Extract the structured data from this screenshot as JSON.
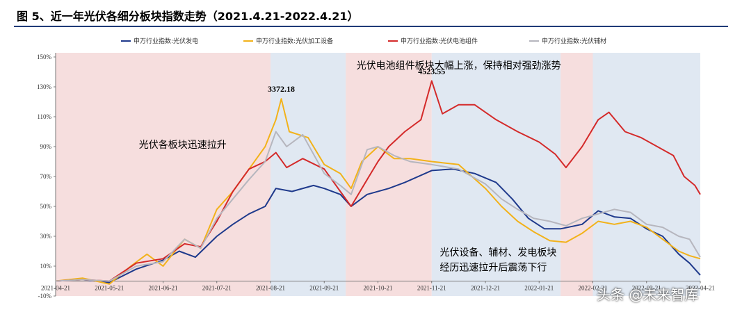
{
  "title": "图 5、近一年光伏各细分板块指数走势（2021.4.21-2022.4.21）",
  "watermark": "头条 @未来智库",
  "chart_data": {
    "type": "line",
    "x_labels": [
      "2021-04-21",
      "2021-05-21",
      "2021-06-21",
      "2021-07-21",
      "2021-08-21",
      "2021-09-21",
      "2021-10-21",
      "2021-11-21",
      "2021-12-21",
      "2022-01-21",
      "2022-02-21",
      "2022-03-21",
      "2022-04-21"
    ],
    "y_ticks": [
      "150%",
      "130%",
      "110%",
      "90%",
      "70%",
      "50%",
      "30%",
      "10%",
      "-10%"
    ],
    "ylim": [
      -10,
      150
    ],
    "grid": false,
    "legend_position": "top",
    "shaded_periods": [
      {
        "start": 0,
        "end": 4.0,
        "color": "#f6dede"
      },
      {
        "start": 4.0,
        "end": 5.4,
        "color": "#e0e8f2"
      },
      {
        "start": 5.4,
        "end": 7.0,
        "color": "#f6dede"
      },
      {
        "start": 7.0,
        "end": 9.4,
        "color": "#e0e8f2"
      },
      {
        "start": 9.4,
        "end": 10.0,
        "color": "#f6dede"
      },
      {
        "start": 10.0,
        "end": 12.0,
        "color": "#e0e8f2"
      }
    ],
    "series": [
      {
        "name": "申万行业指数:光伏发电",
        "color": "#1f3a8c",
        "points": [
          [
            0,
            0
          ],
          [
            0.5,
            1
          ],
          [
            1,
            -1
          ],
          [
            1.5,
            8
          ],
          [
            2,
            14
          ],
          [
            2.3,
            20
          ],
          [
            2.6,
            16
          ],
          [
            3,
            30
          ],
          [
            3.3,
            38
          ],
          [
            3.6,
            45
          ],
          [
            3.9,
            50
          ],
          [
            4.1,
            62
          ],
          [
            4.4,
            60
          ],
          [
            4.8,
            64
          ],
          [
            5.0,
            62
          ],
          [
            5.3,
            58
          ],
          [
            5.5,
            50
          ],
          [
            5.8,
            58
          ],
          [
            6.2,
            62
          ],
          [
            6.5,
            66
          ],
          [
            7.0,
            74
          ],
          [
            7.4,
            75
          ],
          [
            7.8,
            72
          ],
          [
            8.2,
            66
          ],
          [
            8.5,
            55
          ],
          [
            8.8,
            42
          ],
          [
            9.1,
            35
          ],
          [
            9.4,
            35
          ],
          [
            9.8,
            38
          ],
          [
            10.1,
            47
          ],
          [
            10.4,
            43
          ],
          [
            10.7,
            42
          ],
          [
            11.0,
            35
          ],
          [
            11.3,
            30
          ],
          [
            11.6,
            18
          ],
          [
            11.8,
            12
          ],
          [
            12.0,
            4
          ]
        ]
      },
      {
        "name": "申万行业指数:光伏加工设备",
        "color": "#f2b21a",
        "points": [
          [
            0,
            0
          ],
          [
            0.5,
            2
          ],
          [
            1,
            -2
          ],
          [
            1.4,
            10
          ],
          [
            1.7,
            18
          ],
          [
            2,
            10
          ],
          [
            2.4,
            28
          ],
          [
            2.7,
            22
          ],
          [
            3.0,
            48
          ],
          [
            3.3,
            60
          ],
          [
            3.6,
            75
          ],
          [
            3.9,
            90
          ],
          [
            4.1,
            108
          ],
          [
            4.2,
            122
          ],
          [
            4.35,
            100
          ],
          [
            4.7,
            96
          ],
          [
            5.0,
            78
          ],
          [
            5.3,
            72
          ],
          [
            5.5,
            62
          ],
          [
            5.7,
            80
          ],
          [
            6.0,
            90
          ],
          [
            6.3,
            82
          ],
          [
            6.6,
            82
          ],
          [
            7.0,
            80
          ],
          [
            7.5,
            78
          ],
          [
            8.0,
            62
          ],
          [
            8.3,
            50
          ],
          [
            8.6,
            40
          ],
          [
            8.9,
            33
          ],
          [
            9.2,
            27
          ],
          [
            9.5,
            26
          ],
          [
            9.8,
            32
          ],
          [
            10.1,
            40
          ],
          [
            10.4,
            38
          ],
          [
            10.7,
            40
          ],
          [
            11.0,
            36
          ],
          [
            11.3,
            28
          ],
          [
            11.6,
            20
          ],
          [
            11.8,
            17
          ],
          [
            12.0,
            15
          ]
        ]
      },
      {
        "name": "申万行业指数:光伏电池组件",
        "color": "#d42a2a",
        "points": [
          [
            0,
            0
          ],
          [
            0.5,
            1
          ],
          [
            1,
            0
          ],
          [
            1.5,
            12
          ],
          [
            2.0,
            15
          ],
          [
            2.4,
            25
          ],
          [
            2.7,
            23
          ],
          [
            3.0,
            40
          ],
          [
            3.3,
            60
          ],
          [
            3.6,
            75
          ],
          [
            3.9,
            80
          ],
          [
            4.1,
            86
          ],
          [
            4.3,
            76
          ],
          [
            4.6,
            82
          ],
          [
            5.0,
            75
          ],
          [
            5.3,
            60
          ],
          [
            5.5,
            50
          ],
          [
            5.8,
            68
          ],
          [
            6.0,
            80
          ],
          [
            6.2,
            90
          ],
          [
            6.5,
            100
          ],
          [
            6.8,
            108
          ],
          [
            7.0,
            134
          ],
          [
            7.2,
            112
          ],
          [
            7.5,
            118
          ],
          [
            7.8,
            118
          ],
          [
            8.2,
            108
          ],
          [
            8.6,
            100
          ],
          [
            9.0,
            93
          ],
          [
            9.3,
            85
          ],
          [
            9.5,
            76
          ],
          [
            9.8,
            90
          ],
          [
            10.1,
            108
          ],
          [
            10.3,
            113
          ],
          [
            10.6,
            100
          ],
          [
            10.9,
            96
          ],
          [
            11.2,
            90
          ],
          [
            11.5,
            84
          ],
          [
            11.7,
            70
          ],
          [
            11.9,
            64
          ],
          [
            12.0,
            58
          ]
        ]
      },
      {
        "name": "申万行业指数:光伏辅材",
        "color": "#b6b6be",
        "points": [
          [
            0,
            0
          ],
          [
            0.5,
            1
          ],
          [
            1,
            0
          ],
          [
            1.5,
            10
          ],
          [
            2,
            13
          ],
          [
            2.4,
            28
          ],
          [
            2.7,
            22
          ],
          [
            3.0,
            42
          ],
          [
            3.3,
            55
          ],
          [
            3.6,
            68
          ],
          [
            3.9,
            80
          ],
          [
            4.1,
            100
          ],
          [
            4.3,
            90
          ],
          [
            4.6,
            98
          ],
          [
            5.0,
            72
          ],
          [
            5.3,
            64
          ],
          [
            5.5,
            58
          ],
          [
            5.8,
            88
          ],
          [
            6.0,
            90
          ],
          [
            6.3,
            84
          ],
          [
            6.6,
            80
          ],
          [
            7.0,
            78
          ],
          [
            7.5,
            75
          ],
          [
            8.0,
            65
          ],
          [
            8.3,
            55
          ],
          [
            8.6,
            48
          ],
          [
            8.9,
            42
          ],
          [
            9.2,
            40
          ],
          [
            9.5,
            37
          ],
          [
            9.8,
            42
          ],
          [
            10.1,
            45
          ],
          [
            10.4,
            48
          ],
          [
            10.7,
            46
          ],
          [
            11.0,
            38
          ],
          [
            11.3,
            36
          ],
          [
            11.6,
            30
          ],
          [
            11.8,
            28
          ],
          [
            12.0,
            16
          ]
        ]
      }
    ],
    "annotations": [
      {
        "text": "3372.18",
        "kind": "peak",
        "x": 4.2,
        "y": 122
      },
      {
        "text": "4523.55",
        "kind": "peak",
        "x": 7.0,
        "y": 134
      },
      {
        "text": "光伏各板块迅速拉升",
        "kind": "note",
        "x": 1.55,
        "y": 89
      },
      {
        "text": "光伏电池组件板块大幅上涨，保持相对强劲涨势",
        "kind": "note",
        "x": 5.6,
        "y": 142
      },
      {
        "text": "光伏设备、辅材、发电板块",
        "kind": "note",
        "x": 7.15,
        "y": 17
      },
      {
        "text": "经历迅速拉升后震荡下行",
        "kind": "note",
        "x": 7.15,
        "y": 7
      }
    ]
  }
}
